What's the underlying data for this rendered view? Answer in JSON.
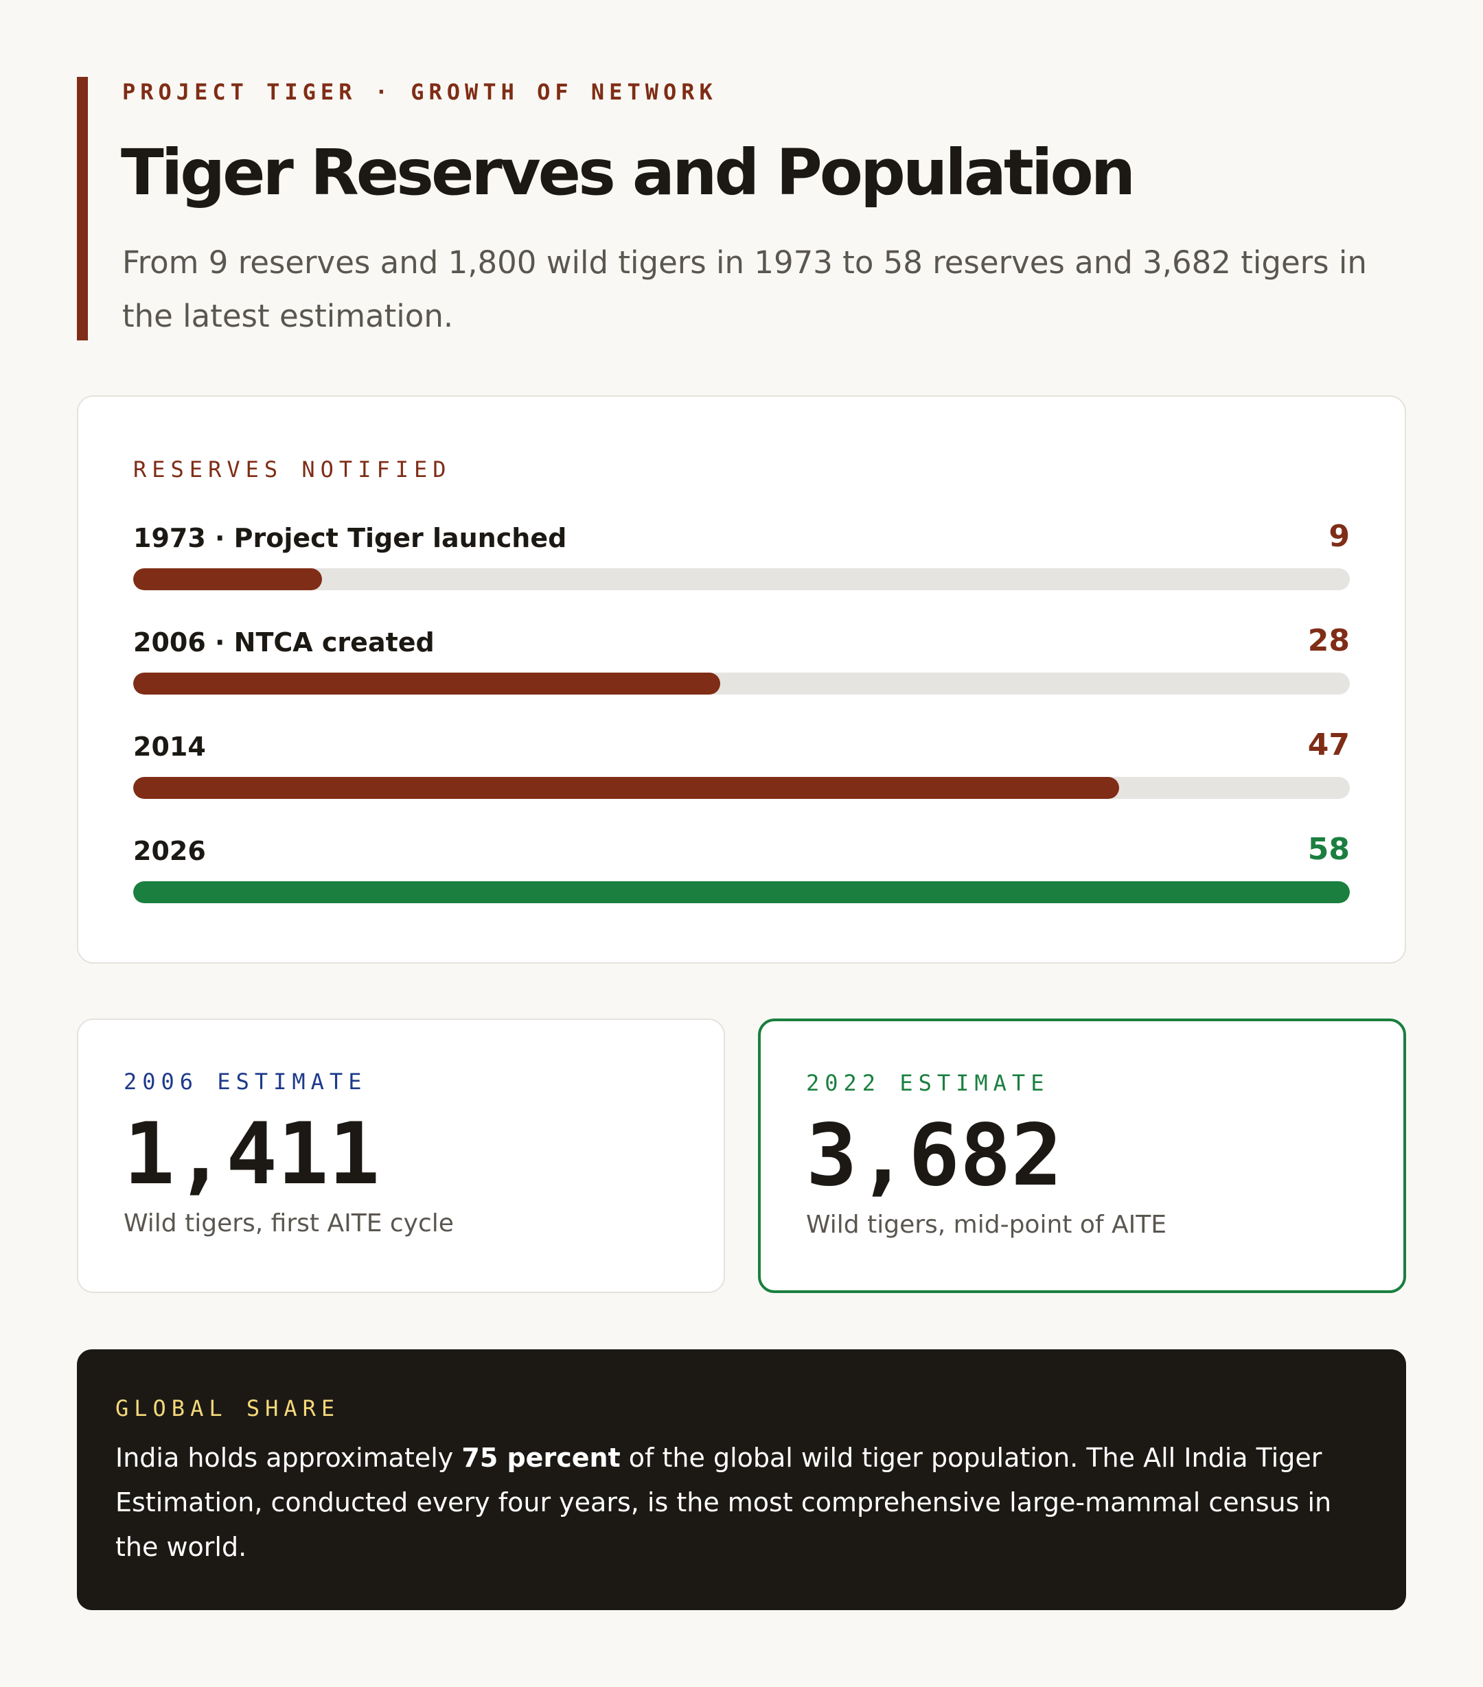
{
  "header": {
    "eyebrow": "PROJECT TIGER · GROWTH OF NETWORK",
    "title": "Tiger Reserves and Population",
    "subtitle": "From 9 reserves and 1,800 wild tigers in 1973 to 58 reserves and 3,682 tigers in the latest estimation."
  },
  "colors": {
    "accent": "#7f2d16",
    "green": "#1a7f3f",
    "blue": "#1d3a8a",
    "track": "#e6e4e1",
    "dark": "#1c1915",
    "highlight": "#f4d97a"
  },
  "chart_data": {
    "type": "bar",
    "title": "RESERVES NOTIFIED",
    "orientation": "horizontal",
    "categories": [
      "1973 · Project Tiger launched",
      "2006 · NTCA created",
      "2014",
      "2026"
    ],
    "values": [
      9,
      28,
      47,
      58
    ],
    "xlim": [
      0,
      58
    ],
    "bar_colors": [
      "#7f2d16",
      "#7f2d16",
      "#7f2d16",
      "#1a7f3f"
    ],
    "grid": false
  },
  "stats": [
    {
      "label": "2006 ESTIMATE",
      "value": "1,411",
      "caption": "Wild tigers, first AITE cycle",
      "label_color": "#1d3a8a"
    },
    {
      "label": "2022 ESTIMATE",
      "value": "3,682",
      "caption": "Wild tigers, mid-point of AITE",
      "label_color": "#1a7f3f"
    }
  ],
  "global_share": {
    "label": "GLOBAL SHARE",
    "text_before": "India holds approximately ",
    "text_bold": "75 percent",
    "text_after": " of the global wild tiger population. The All India Tiger Estimation, conducted every four years, is the most comprehensive large-mammal census in the world."
  }
}
